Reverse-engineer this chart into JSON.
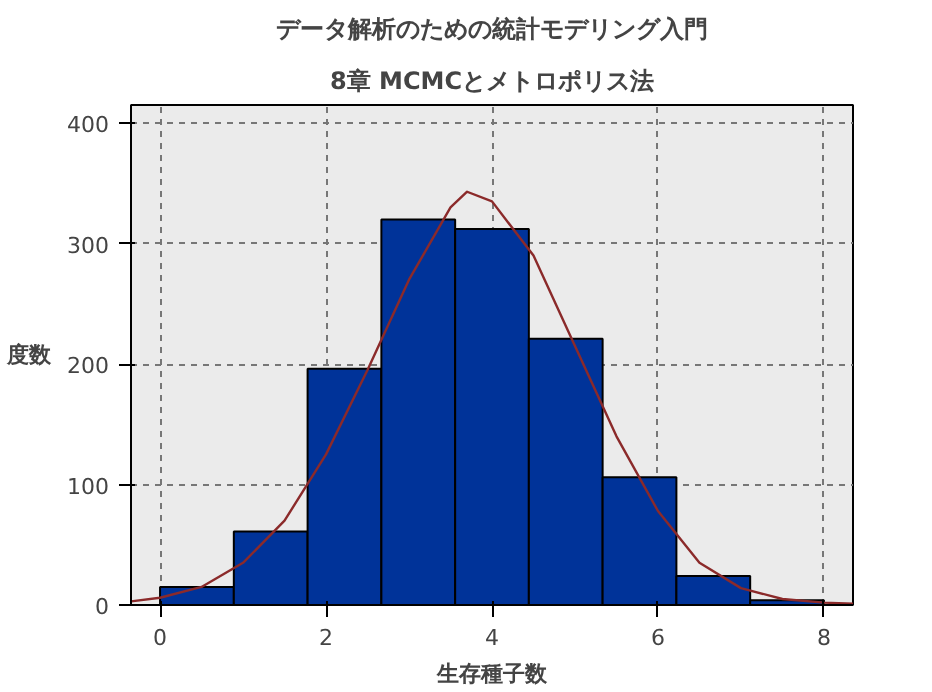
{
  "chart_data": {
    "type": "histogram",
    "title": "データ解析のための統計モデリング入門",
    "subtitle": "8章 MCMCとメトロポリス法",
    "xlabel": "生存種子数",
    "ylabel": "度数",
    "bins": [
      0,
      0.889,
      1.778,
      2.667,
      3.556,
      4.444,
      5.333,
      6.222,
      7.111,
      8
    ],
    "values": [
      15,
      61,
      196,
      320,
      312,
      221,
      106,
      24,
      4
    ],
    "color": "#003399",
    "series": [
      {
        "type": "line",
        "color": "#8b2a2a",
        "x": [
          -0.35,
          0,
          0.5,
          1,
          1.5,
          2,
          2.5,
          3,
          3.5,
          3.7,
          4,
          4.5,
          5,
          5.5,
          6,
          6.5,
          7,
          7.5,
          8,
          8.35
        ],
        "values": [
          3,
          6,
          15,
          35,
          70,
          125,
          195,
          270,
          330,
          343,
          335,
          290,
          215,
          140,
          78,
          35,
          14,
          5,
          2,
          1
        ]
      }
    ],
    "xlim": [
      -0.35,
      8.35
    ],
    "ylim": [
      0,
      415
    ],
    "xticks": [
      0,
      2,
      4,
      6,
      8
    ],
    "yticks": [
      0,
      100,
      200,
      300,
      400
    ],
    "grid": true
  }
}
